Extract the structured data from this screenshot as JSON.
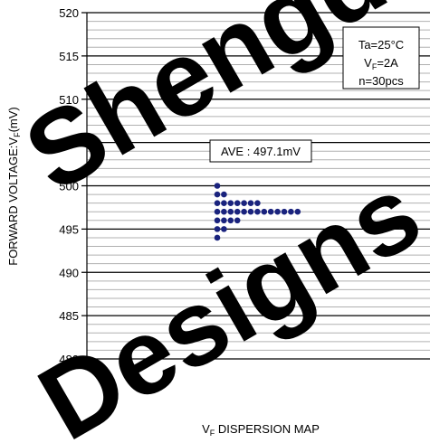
{
  "chart_data": {
    "type": "scatter",
    "title": "",
    "xlabel_main": "V",
    "xlabel_sub": "F",
    "xlabel_rest": " DISPERSION MAP",
    "ylabel_main": "FORWARD VOLTAGE:V",
    "ylabel_sub": "F",
    "ylabel_rest": "(mV)",
    "ylim": [
      480,
      520
    ],
    "y_ticks": [
      "520",
      "515",
      "510",
      "505",
      "500",
      "495",
      "490",
      "485",
      "480"
    ],
    "minor_step": 1,
    "major_step": 5,
    "grid": true,
    "marker_color": "#1a237e",
    "points": [
      {
        "column": 1,
        "vf": 500
      },
      {
        "column": 1,
        "vf": 499
      },
      {
        "column": 1,
        "vf": 498
      },
      {
        "column": 1,
        "vf": 497
      },
      {
        "column": 1,
        "vf": 496
      },
      {
        "column": 1,
        "vf": 495
      },
      {
        "column": 1,
        "vf": 494
      },
      {
        "column": 2,
        "vf": 499
      },
      {
        "column": 2,
        "vf": 498
      },
      {
        "column": 2,
        "vf": 497
      },
      {
        "column": 2,
        "vf": 496
      },
      {
        "column": 2,
        "vf": 495
      },
      {
        "column": 3,
        "vf": 498
      },
      {
        "column": 3,
        "vf": 497
      },
      {
        "column": 3,
        "vf": 496
      },
      {
        "column": 4,
        "vf": 498
      },
      {
        "column": 4,
        "vf": 497
      },
      {
        "column": 4,
        "vf": 496
      },
      {
        "column": 5,
        "vf": 498
      },
      {
        "column": 5,
        "vf": 497
      },
      {
        "column": 6,
        "vf": 498
      },
      {
        "column": 6,
        "vf": 497
      },
      {
        "column": 7,
        "vf": 498
      },
      {
        "column": 7,
        "vf": 497
      },
      {
        "column": 8,
        "vf": 497
      },
      {
        "column": 9,
        "vf": 497
      },
      {
        "column": 10,
        "vf": 497
      },
      {
        "column": 11,
        "vf": 497
      },
      {
        "column": 12,
        "vf": 497
      },
      {
        "column": 13,
        "vf": 497
      }
    ],
    "ave_label": "AVE : 497.1mV",
    "conditions": {
      "ta": "Ta=25°C",
      "vf_main": "V",
      "vf_sub": "F",
      "vf_rest": "=2A",
      "n": "n=30pcs"
    }
  },
  "watermark": {
    "line1": "Shengda",
    "line2": "Designs",
    "color": "#000000"
  }
}
